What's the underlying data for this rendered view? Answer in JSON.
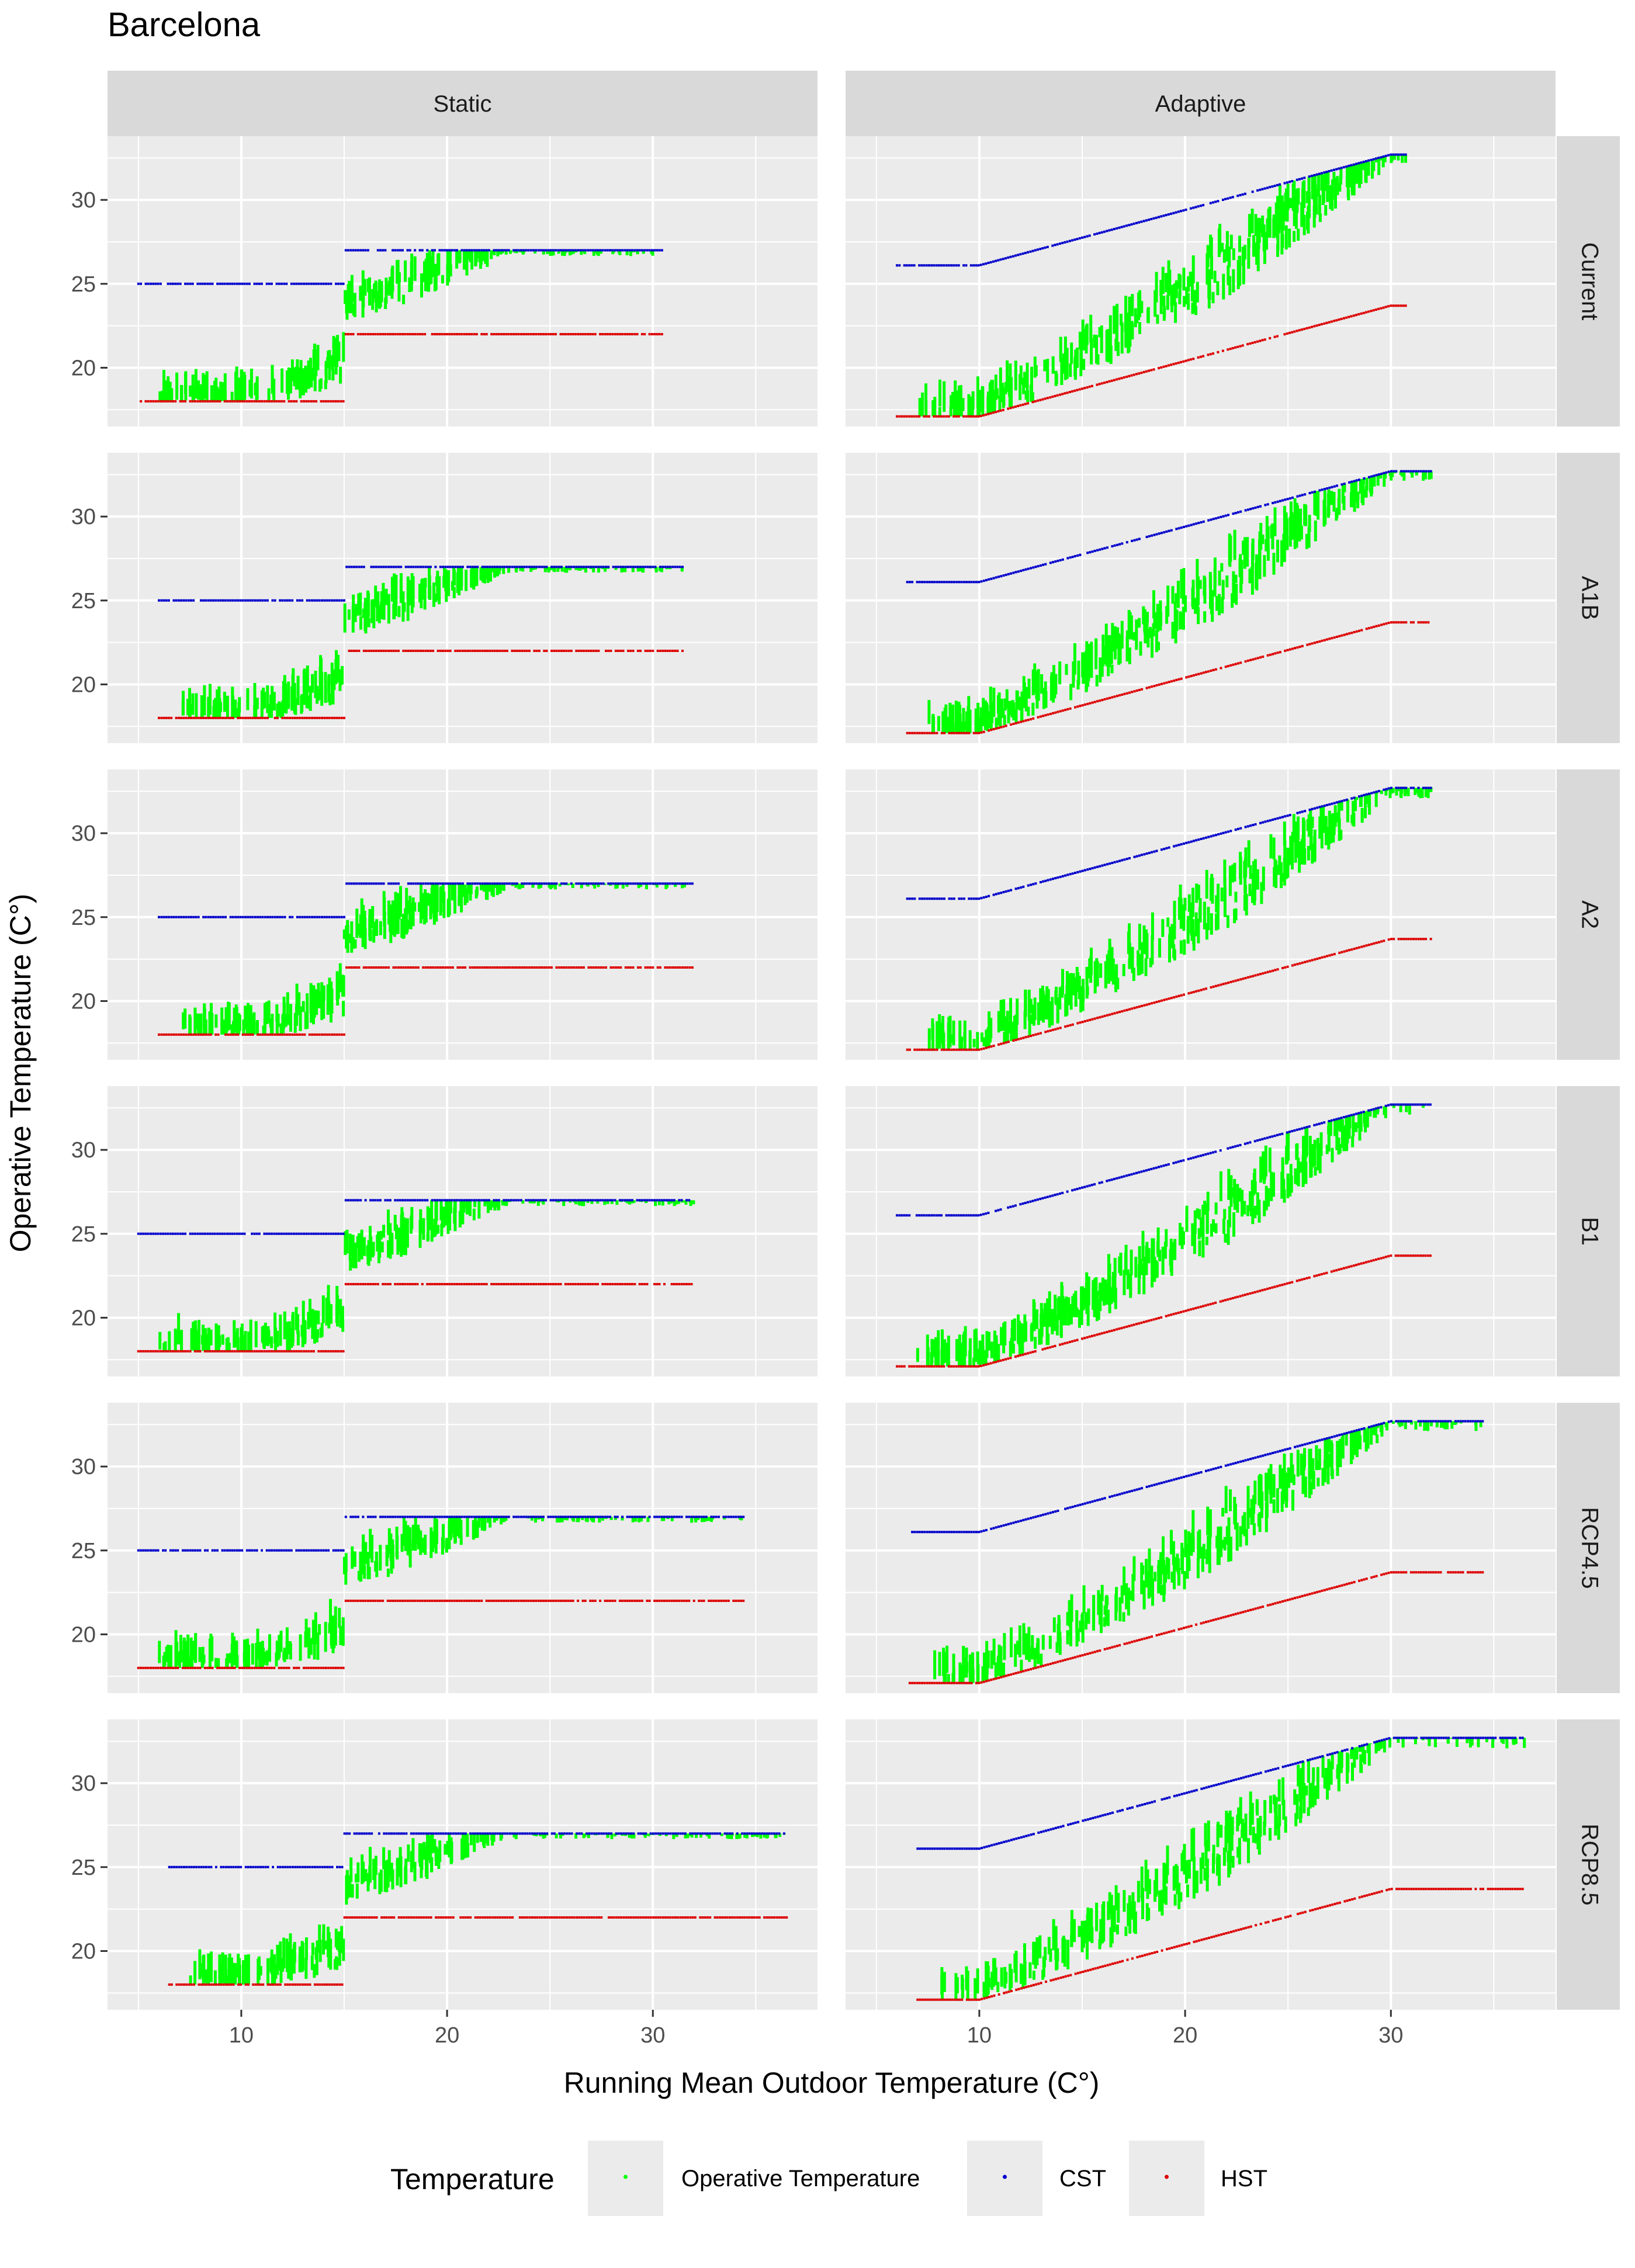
{
  "page_title": "Barcelona",
  "chart_data": {
    "type": "scatter",
    "title": "Barcelona",
    "xlabel": "Running Mean Outdoor Temperature (C°)",
    "ylabel": "Operative Temperature (C°)",
    "xlim": [
      3.5,
      38
    ],
    "ylim": [
      16.5,
      33.8
    ],
    "x_ticks": [
      10,
      20,
      30
    ],
    "y_ticks": [
      20,
      25,
      30
    ],
    "grid": true,
    "legend": {
      "title": "Temperature",
      "position": "bottom",
      "entries": [
        {
          "label": "Operative Temperature",
          "color": "#00ff00"
        },
        {
          "label": "CST",
          "color": "#0000cc"
        },
        {
          "label": "HST",
          "color": "#dd0000"
        }
      ]
    },
    "columns": [
      "Static",
      "Adaptive"
    ],
    "rows": [
      "Current",
      "A1B",
      "A2",
      "B1",
      "RCP4.5",
      "RCP8.5"
    ],
    "models": {
      "Static": {
        "CST": {
          "low_x": 15,
          "low_value": 25,
          "high_value": 27
        },
        "HST": {
          "low_x": 15,
          "low_value": 18,
          "high_value": 22
        }
      },
      "Adaptive": {
        "CST": {
          "x_breaks": [
            10,
            30
          ],
          "y_at_breaks": [
            26.1,
            32.7
          ]
        },
        "HST": {
          "x_breaks": [
            10,
            30
          ],
          "y_at_breaks": [
            17.1,
            23.7
          ]
        }
      }
    },
    "x_range_by_row": {
      "Static": {
        "Current": [
          5,
          30.5
        ],
        "A1B": [
          6,
          31.5
        ],
        "A2": [
          6,
          32
        ],
        "B1": [
          5,
          32
        ],
        "RCP4.5": [
          5,
          34.5
        ],
        "RCP8.5": [
          6.5,
          36.5
        ]
      },
      "Adaptive": {
        "Current": [
          6,
          30.8
        ],
        "A1B": [
          6.5,
          32
        ],
        "A2": [
          6.5,
          32
        ],
        "B1": [
          6,
          32
        ],
        "RCP4.5": [
          6.5,
          34.5
        ],
        "RCP8.5": [
          7,
          36.5
        ]
      }
    },
    "operative_temperature": {
      "description": "Operative temperature tracks the lower comfort bound at cold outdoor temperatures and rises toward the upper bound as running mean temperature increases",
      "static_plateau_x": 23,
      "adaptive_plateau_x": 30
    }
  }
}
